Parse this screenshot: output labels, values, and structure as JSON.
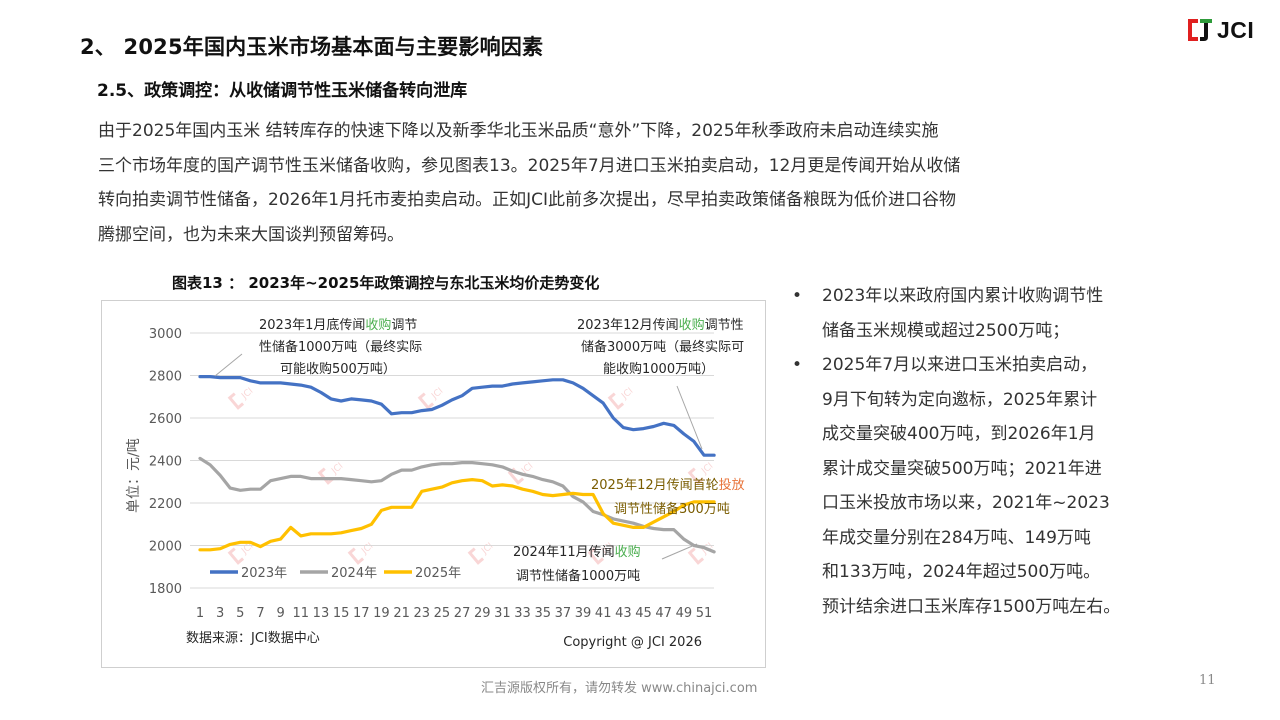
{
  "header": {
    "section_title": "2、 2025年国内玉米市场基本面与主要影响因素",
    "subsection_title": "2.5、政策调控：从收储调节性玉米储备转向泄库",
    "logo_text": "JCI",
    "logo_colors": {
      "red": "#e02020",
      "green": "#2e9b3a",
      "dark": "#111111"
    }
  },
  "body_paragraph": [
    "由于2025年国内玉米 结转库存的快速下降以及新季华北玉米品质“意外”下降，2025年秋季政府未启动连续实施",
    "三个市场年度的国产调节性玉米储备收购，参见图表13。2025年7月进口玉米拍卖启动，12月更是传闻开始从收储",
    "转向拍卖调节性储备，2026年1月托市麦拍卖启动。正如JCI此前多次提出，尽早拍卖政策储备粮既为低价进口谷物",
    "腾挪空间，也为未来大国谈判预留筹码。"
  ],
  "figure": {
    "title": "图表13 ： 2023年~2025年政策调控与东北玉米均价走势变化",
    "source": "数据来源：JCI数据中心",
    "copyright": "Copyright @ JCI 2026",
    "annotations": [
      {
        "id": "ann1",
        "lines": [
          [
            "2023年1月底传闻",
            "收购",
            "调节"
          ],
          [
            "性储备1000万吨（最终实际",
            "",
            ""
          ],
          [
            "可能收购500万吨）",
            "",
            ""
          ]
        ],
        "highlight_color": "#4caf50"
      },
      {
        "id": "ann2",
        "lines": [
          [
            "2023年12月传闻",
            "收购",
            "调节性"
          ],
          [
            "储备3000万吨（最终实际可",
            "",
            ""
          ],
          [
            "能收购1000万吨）",
            "",
            ""
          ]
        ],
        "highlight_color": "#4caf50"
      },
      {
        "id": "ann3",
        "lines": [
          [
            "2025年12月传闻首轮",
            "投放",
            ""
          ],
          [
            "调节性储备300万吨",
            "",
            ""
          ]
        ],
        "text_color": "#7a5c00",
        "highlight_color": "#e8743b"
      },
      {
        "id": "ann4",
        "lines": [
          [
            "2024年11月传闻",
            "收购",
            ""
          ],
          [
            "调节性储备1000万吨",
            "",
            ""
          ]
        ],
        "highlight_color": "#4caf50"
      }
    ]
  },
  "chart_data": {
    "type": "line",
    "title": "图表13 ： 2023年~2025年政策调控与东北玉米均价走势变化",
    "xlabel": "",
    "ylabel": "单位：元/吨",
    "ylim": [
      1800,
      3000
    ],
    "yticks": [
      1800,
      2000,
      2200,
      2400,
      2600,
      2800,
      3000
    ],
    "x": [
      1,
      2,
      3,
      4,
      5,
      6,
      7,
      8,
      9,
      10,
      11,
      12,
      13,
      14,
      15,
      16,
      17,
      18,
      19,
      20,
      21,
      22,
      23,
      24,
      25,
      26,
      27,
      28,
      29,
      30,
      31,
      32,
      33,
      34,
      35,
      36,
      37,
      38,
      39,
      40,
      41,
      42,
      43,
      44,
      45,
      46,
      47,
      48,
      49,
      50,
      51,
      52
    ],
    "xticks": [
      "1",
      "3",
      "5",
      "7",
      "9",
      "11",
      "13",
      "15",
      "17",
      "19",
      "21",
      "23",
      "25",
      "27",
      "29",
      "31",
      "33",
      "35",
      "37",
      "39",
      "41",
      "43",
      "45",
      "47",
      "49",
      "51"
    ],
    "grid": true,
    "legend_position": "bottom-left-inside",
    "series": [
      {
        "name": "2023年",
        "color": "#4472c4",
        "values": [
          2795,
          2795,
          2790,
          2790,
          2790,
          2775,
          2765,
          2765,
          2765,
          2760,
          2755,
          2745,
          2720,
          2690,
          2680,
          2690,
          2685,
          2680,
          2665,
          2620,
          2625,
          2625,
          2635,
          2640,
          2660,
          2685,
          2705,
          2740,
          2745,
          2750,
          2750,
          2760,
          2765,
          2770,
          2775,
          2780,
          2780,
          2765,
          2740,
          2705,
          2670,
          2600,
          2555,
          2545,
          2550,
          2560,
          2575,
          2565,
          2525,
          2490,
          2425,
          2425
        ]
      },
      {
        "name": "2024年",
        "color": "#a5a5a5",
        "values": [
          2410,
          2380,
          2330,
          2270,
          2260,
          2265,
          2265,
          2305,
          2315,
          2325,
          2325,
          2315,
          2315,
          2315,
          2315,
          2310,
          2305,
          2300,
          2305,
          2335,
          2355,
          2355,
          2370,
          2380,
          2385,
          2385,
          2390,
          2390,
          2385,
          2380,
          2370,
          2350,
          2335,
          2325,
          2310,
          2300,
          2280,
          2230,
          2205,
          2160,
          2145,
          2125,
          2115,
          2105,
          2090,
          2080,
          2075,
          2075,
          2030,
          2000,
          1990,
          1970
        ]
      },
      {
        "name": "2025年",
        "color": "#ffc000",
        "values": [
          1980,
          1980,
          1985,
          2005,
          2015,
          2015,
          1995,
          2020,
          2030,
          2085,
          2045,
          2055,
          2055,
          2055,
          2060,
          2070,
          2080,
          2100,
          2165,
          2180,
          2180,
          2180,
          2255,
          2265,
          2275,
          2295,
          2305,
          2310,
          2305,
          2280,
          2285,
          2280,
          2265,
          2255,
          2240,
          2235,
          2240,
          2245,
          2240,
          2240,
          2150,
          2105,
          2095,
          2085,
          2085,
          2110,
          2135,
          2160,
          2190,
          2205,
          2205,
          2205
        ]
      }
    ]
  },
  "bullets": [
    {
      "symbol": "•",
      "lines": [
        "2023年以来政府国内累计收购调节性",
        "储备玉米规模或超过2500万吨；"
      ]
    },
    {
      "symbol": "•",
      "lines": [
        "2025年7月以来进口玉米拍卖启动，",
        "9月下旬转为定向邀标，2025年累计",
        "成交量突破400万吨，到2026年1月",
        "累计成交量突破500万吨；2021年进",
        "口玉米投放市场以来，2021年~2023",
        "年成交量分别在284万吨、149万吨",
        "和133万吨，2024年超过500万吨。",
        "预计结余进口玉米库存1500万吨左右。"
      ]
    }
  ],
  "footer": {
    "copyright_text": "汇吉源版权所有，请勿转发 www.chinajci.com",
    "page_number": "11"
  }
}
